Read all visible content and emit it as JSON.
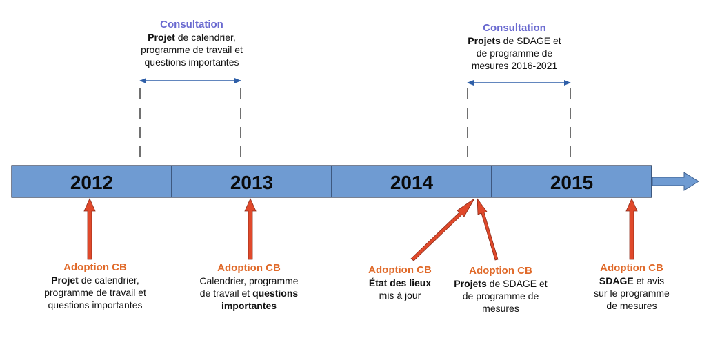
{
  "timeline": {
    "years": [
      "2012",
      "2013",
      "2014",
      "2015"
    ]
  },
  "consultations": [
    {
      "heading": "Consultation",
      "lines": [
        [
          {
            "t": "Projet",
            "b": true
          },
          {
            "t": " de calendrier,",
            "b": false
          }
        ],
        [
          {
            "t": "programme de travail et",
            "b": false
          }
        ],
        [
          {
            "t": "questions importantes",
            "b": false
          }
        ]
      ]
    },
    {
      "heading": "Consultation",
      "lines": [
        [
          {
            "t": "Projets",
            "b": true
          },
          {
            "t": " de SDAGE et",
            "b": false
          }
        ],
        [
          {
            "t": "de programme de",
            "b": false
          }
        ],
        [
          {
            "t": "mesures 2016-2021",
            "b": false
          }
        ]
      ]
    }
  ],
  "adoptions": [
    {
      "heading": "Adoption CB",
      "lines": [
        [
          {
            "t": "Projet",
            "b": true
          },
          {
            "t": " de calendrier,",
            "b": false
          }
        ],
        [
          {
            "t": "programme de travail et",
            "b": false
          }
        ],
        [
          {
            "t": "questions importantes",
            "b": false
          }
        ]
      ]
    },
    {
      "heading": "Adoption CB",
      "lines": [
        [
          {
            "t": "Calendrier, programme",
            "b": false
          }
        ],
        [
          {
            "t": "de travail et ",
            "b": false
          },
          {
            "t": "questions",
            "b": true
          }
        ],
        [
          {
            "t": "importantes",
            "b": true
          }
        ]
      ]
    },
    {
      "heading": "Adoption CB",
      "lines": [
        [
          {
            "t": "État des lieux",
            "b": true
          }
        ],
        [
          {
            "t": "mis à jour",
            "b": false
          }
        ]
      ]
    },
    {
      "heading": "Adoption CB",
      "lines": [
        [
          {
            "t": "Projets",
            "b": true
          },
          {
            "t": " de SDAGE et",
            "b": false
          }
        ],
        [
          {
            "t": "de programme de",
            "b": false
          }
        ],
        [
          {
            "t": "mesures",
            "b": false
          }
        ]
      ]
    },
    {
      "heading": "Adoption CB",
      "lines": [
        [
          {
            "t": "SDAGE",
            "b": true
          },
          {
            "t": " et avis",
            "b": false
          }
        ],
        [
          {
            "t": "sur le programme",
            "b": false
          }
        ],
        [
          {
            "t": "de mesures",
            "b": false
          }
        ]
      ]
    }
  ],
  "colors": {
    "timeline_fill": "#6f9bd2",
    "timeline_stroke": "#1f2d4a",
    "span_arrow": "#2f5fa8",
    "adoption_arrow": "#e0492b",
    "adoption_text": "#e06a2a",
    "consultation_text": "#6a6ad0"
  }
}
